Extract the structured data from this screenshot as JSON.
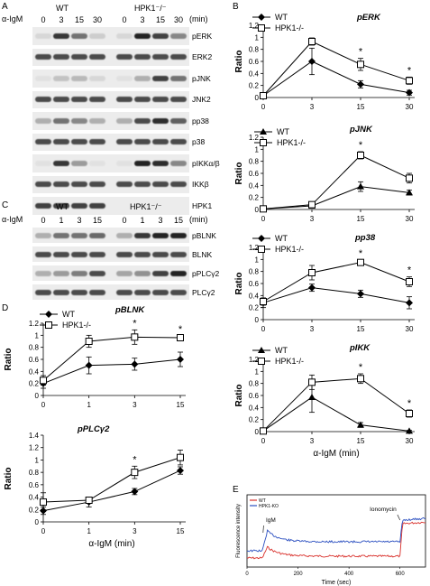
{
  "panels": {
    "A": "A",
    "B": "B",
    "C": "C",
    "D": "D",
    "E": "E"
  },
  "panel_a": {
    "treatment_label": "α-IgM",
    "group_wt": "WT",
    "group_ko": "HPK1⁻/⁻",
    "time_unit": "(min)",
    "timepoints": [
      "0",
      "3",
      "15",
      "30",
      "0",
      "3",
      "15",
      "30"
    ],
    "blots": [
      {
        "name": "pERK",
        "kind": "pERK"
      },
      {
        "name": "ERK2",
        "kind": "total"
      },
      {
        "name": "pJNK",
        "kind": "pJNK"
      },
      {
        "name": "JNK2",
        "kind": "total"
      },
      {
        "name": "pp38",
        "kind": "pp38"
      },
      {
        "name": "p38",
        "kind": "total"
      },
      {
        "name": "pIKKα/β",
        "kind": "pIKK"
      },
      {
        "name": "IKKβ",
        "kind": "total"
      },
      {
        "name": "HPK1",
        "kind": "hpk1"
      }
    ]
  },
  "panel_c": {
    "treatment_label": "α-IgM",
    "group_wt": "WT",
    "group_ko": "HPK1⁻/⁻",
    "time_unit": "(min)",
    "timepoints": [
      "0",
      "1",
      "3",
      "15",
      "0",
      "1",
      "3",
      "15"
    ],
    "blots": [
      {
        "name": "pBLNK",
        "kind": "pBLNK"
      },
      {
        "name": "BLNK",
        "kind": "total"
      },
      {
        "name": "pPLCγ2",
        "kind": "pPLC"
      },
      {
        "name": "PLCγ2",
        "kind": "total"
      }
    ]
  },
  "chart_data": [
    {
      "id": "erk",
      "type": "line",
      "title": "pERK",
      "ylabel": "Ratio",
      "xlabel": "",
      "x": [
        "0",
        "3",
        "15",
        "30"
      ],
      "ylim": [
        0,
        1.2
      ],
      "yticks": [
        "0",
        "0.2",
        "0.4",
        "0.6",
        "0.8",
        "1",
        "1.2"
      ],
      "series": [
        {
          "name": "WT",
          "marker": "diamond",
          "values": [
            0.03,
            0.6,
            0.22,
            0.08
          ],
          "err": [
            0.02,
            0.22,
            0.06,
            0.04
          ]
        },
        {
          "name": "HPK1-/-",
          "marker": "square",
          "values": [
            0.03,
            0.93,
            0.55,
            0.28
          ],
          "err": [
            0.02,
            0.06,
            0.1,
            0.06
          ]
        }
      ],
      "stars": [
        "",
        "",
        "*",
        "*"
      ]
    },
    {
      "id": "jnk",
      "type": "line",
      "title": "pJNK",
      "ylabel": "Ratio",
      "xlabel": "",
      "x": [
        "0",
        "3",
        "15",
        "30"
      ],
      "ylim": [
        0,
        1.2
      ],
      "yticks": [
        "0",
        "0.2",
        "0.4",
        "0.6",
        "0.8",
        "1",
        "1.2"
      ],
      "series": [
        {
          "name": "WT",
          "marker": "triangle",
          "values": [
            0.01,
            0.06,
            0.38,
            0.28
          ],
          "err": [
            0.01,
            0.02,
            0.08,
            0.04
          ]
        },
        {
          "name": "HPK1-/-",
          "marker": "square",
          "values": [
            0.01,
            0.08,
            0.9,
            0.52
          ],
          "err": [
            0.01,
            0.02,
            0.06,
            0.08
          ]
        }
      ],
      "stars": [
        "",
        "",
        "*",
        ""
      ]
    },
    {
      "id": "p38",
      "type": "line",
      "title": "pp38",
      "ylabel": "Ratio",
      "xlabel": "",
      "x": [
        "0",
        "3",
        "15",
        "30"
      ],
      "ylim": [
        0,
        1.2
      ],
      "yticks": [
        "0",
        "0.2",
        "0.4",
        "0.6",
        "0.8",
        "1",
        "1.2"
      ],
      "series": [
        {
          "name": "WT",
          "marker": "diamond",
          "values": [
            0.28,
            0.53,
            0.43,
            0.28
          ],
          "err": [
            0.08,
            0.06,
            0.06,
            0.1
          ]
        },
        {
          "name": "HPK1-/-",
          "marker": "square",
          "values": [
            0.3,
            0.78,
            0.95,
            0.63
          ],
          "err": [
            0.06,
            0.12,
            0.04,
            0.08
          ]
        }
      ],
      "stars": [
        "",
        "",
        "*",
        "*"
      ]
    },
    {
      "id": "ikk",
      "type": "line",
      "title": "pIKK",
      "ylabel": "Ratio",
      "xlabel": "α-IgM (min)",
      "x": [
        "0",
        "3",
        "15",
        "30"
      ],
      "ylim": [
        0,
        1.2
      ],
      "yticks": [
        "0",
        "0.2",
        "0.4",
        "0.6",
        "0.8",
        "1",
        "1.2"
      ],
      "series": [
        {
          "name": "WT",
          "marker": "triangle",
          "values": [
            0.01,
            0.57,
            0.11,
            0.01
          ],
          "err": [
            0.01,
            0.25,
            0.04,
            0.01
          ]
        },
        {
          "name": "HPK1-/-",
          "marker": "square",
          "values": [
            0.01,
            0.82,
            0.88,
            0.3
          ],
          "err": [
            0.01,
            0.12,
            0.08,
            0.06
          ]
        }
      ],
      "stars": [
        "",
        "",
        "*",
        "*"
      ]
    },
    {
      "id": "blnk",
      "type": "line",
      "title": "pBLNK",
      "ylabel": "Ratio",
      "xlabel": "",
      "x": [
        "0",
        "1",
        "3",
        "15"
      ],
      "ylim": [
        0,
        1.2
      ],
      "yticks": [
        "0",
        "0.2",
        "0.4",
        "0.6",
        "0.8",
        "1",
        "1.2"
      ],
      "series": [
        {
          "name": "WT",
          "marker": "diamond",
          "values": [
            0.2,
            0.5,
            0.52,
            0.6
          ],
          "err": [
            0.08,
            0.14,
            0.1,
            0.12
          ]
        },
        {
          "name": "HPK1-/-",
          "marker": "square",
          "values": [
            0.25,
            0.9,
            0.97,
            0.96
          ],
          "err": [
            0.08,
            0.1,
            0.12,
            0.03
          ]
        }
      ],
      "stars": [
        "",
        "",
        "*",
        "*"
      ]
    },
    {
      "id": "plc",
      "type": "line",
      "title": "pPLCγ2",
      "ylabel": "Ratio",
      "xlabel": "α-IgM (min)",
      "x": [
        "0",
        "1",
        "3",
        "15"
      ],
      "ylim": [
        0,
        1.4
      ],
      "yticks": [
        "0",
        "0.2",
        "0.4",
        "0.6",
        "0.8",
        "1",
        "1.2",
        "1.4"
      ],
      "series": [
        {
          "name": "WT",
          "marker": "diamond",
          "values": [
            0.18,
            0.32,
            0.49,
            0.83
          ],
          "err": [
            0.06,
            0.08,
            0.05,
            0.06
          ]
        },
        {
          "name": "HPK1-/-",
          "marker": "square",
          "values": [
            0.32,
            0.35,
            0.8,
            1.04
          ],
          "err": [
            0.15,
            0.05,
            0.1,
            0.12
          ]
        }
      ],
      "stars": [
        "",
        "",
        "*",
        ""
      ]
    },
    {
      "id": "calcium",
      "type": "line",
      "title": "",
      "ylabel": "Fluorescence intensity",
      "xlabel": "Time (sec)",
      "xticks": [
        "0",
        "200",
        "400",
        "600"
      ],
      "xlim": [
        0,
        700
      ],
      "series": [
        {
          "name": "WT",
          "color": "#d9302b"
        },
        {
          "name": "HPK1-KO",
          "color": "#2b4fc0"
        }
      ],
      "annotations": [
        "IgM",
        "Ionomycin"
      ]
    }
  ]
}
